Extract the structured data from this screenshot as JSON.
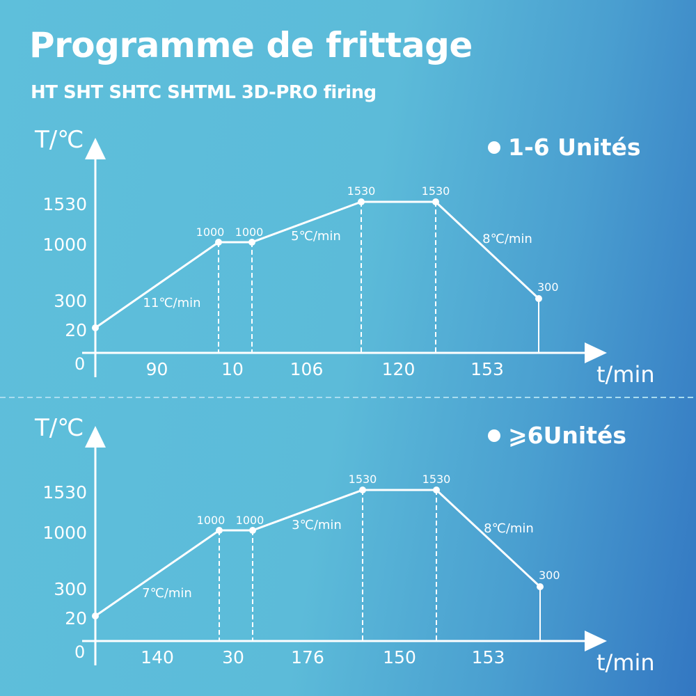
{
  "header": {
    "title": "Programme de frittage",
    "subtitle": "HT SHT SHTC SHTML 3D-PRO firing"
  },
  "colors": {
    "background_left": "#5ebfdb",
    "background_right": "#3377c2",
    "lines": "#ffffff"
  },
  "chart_data": [
    {
      "type": "line",
      "legend": "1-6 Unités",
      "legend_placement": "top-right",
      "ylabel": "T/℃",
      "xlabel": "t/min",
      "y_ticks": [
        "1530",
        "1000",
        "300",
        "20",
        "0"
      ],
      "points_temp": [
        20,
        1000,
        1000,
        1530,
        1530,
        300
      ],
      "point_labels": [
        "1000",
        "1000",
        "1530",
        "1530",
        "300"
      ],
      "segment_durations": [
        "90",
        "10",
        "106",
        "120",
        "153"
      ],
      "rates": [
        "11℃/min",
        "5℃/min",
        "8℃/min"
      ],
      "grid": false
    },
    {
      "type": "line",
      "legend": "⩾6Unités",
      "legend_placement": "top-right",
      "ylabel": "T/℃",
      "xlabel": "t/min",
      "y_ticks": [
        "1530",
        "1000",
        "300",
        "20",
        "0"
      ],
      "points_temp": [
        20,
        1000,
        1000,
        1530,
        1530,
        300
      ],
      "point_labels": [
        "1000",
        "1000",
        "1530",
        "1530",
        "300"
      ],
      "segment_durations": [
        "140",
        "30",
        "176",
        "150",
        "153"
      ],
      "rates": [
        "7℃/min",
        "3℃/min",
        "8℃/min"
      ],
      "grid": false
    }
  ]
}
